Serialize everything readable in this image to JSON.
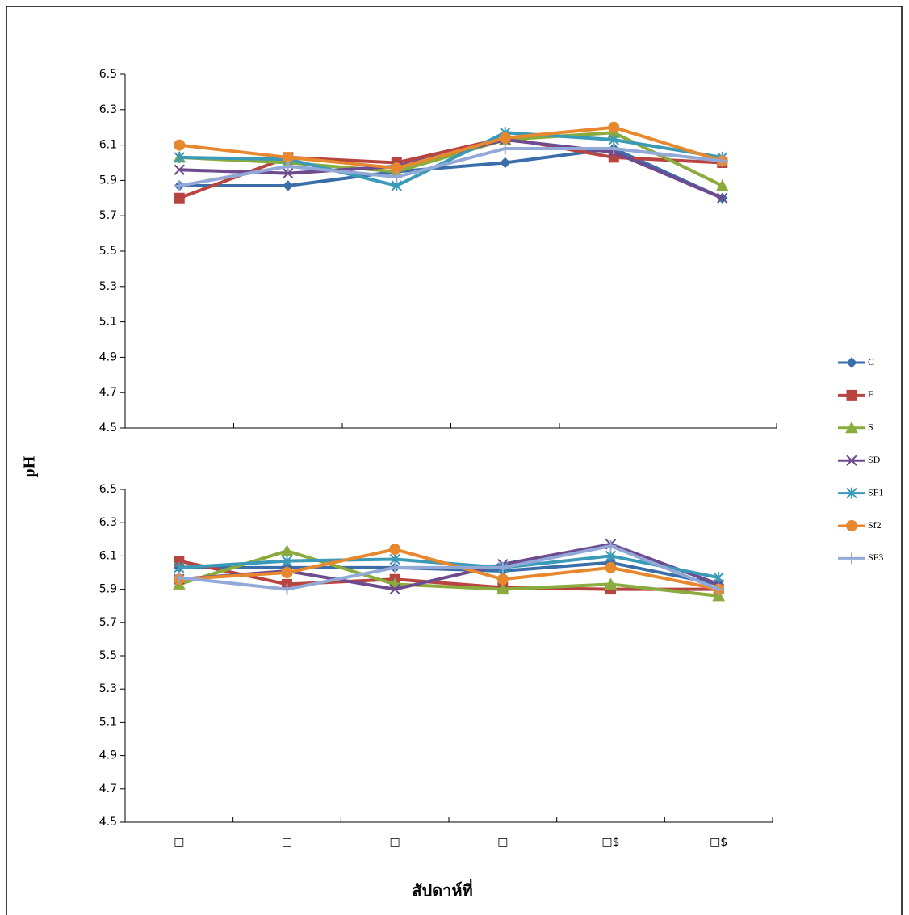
{
  "chart_data": [
    {
      "type": "line",
      "y_label": "pH",
      "ylim": [
        4.5,
        6.5
      ],
      "yticks": [
        4.5,
        4.7,
        4.9,
        5.1,
        5.3,
        5.5,
        5.7,
        5.9,
        6.1,
        6.3,
        6.5
      ],
      "series": [
        {
          "name": "C",
          "color": "#3a6ea8",
          "marker": "diamond",
          "values": [
            5.87,
            5.87,
            5.95,
            6.0,
            6.08,
            5.8
          ]
        },
        {
          "name": "F",
          "color": "#b84440",
          "marker": "square",
          "values": [
            5.8,
            6.03,
            6.0,
            6.14,
            6.03,
            6.0
          ]
        },
        {
          "name": "S",
          "color": "#8aab3e",
          "marker": "triangle",
          "values": [
            6.03,
            6.0,
            5.95,
            6.13,
            6.17,
            5.87
          ]
        },
        {
          "name": "SD",
          "color": "#6e4a8e",
          "marker": "x",
          "values": [
            5.96,
            5.94,
            5.98,
            6.13,
            6.06,
            5.8
          ]
        },
        {
          "name": "SF1",
          "color": "#3a9ab8",
          "marker": "star",
          "values": [
            6.03,
            6.02,
            5.87,
            6.17,
            6.13,
            6.03
          ]
        },
        {
          "name": "Sf2",
          "color": "#e8882e",
          "marker": "circle",
          "values": [
            6.1,
            6.03,
            5.97,
            6.14,
            6.2,
            6.01
          ]
        },
        {
          "name": "SF3",
          "color": "#92a9d8",
          "marker": "plus",
          "values": [
            5.87,
            5.98,
            5.92,
            6.08,
            6.08,
            6.01
          ]
        }
      ]
    },
    {
      "type": "line",
      "x_label": "สัปดาห์ที่",
      "categories": [
        "□",
        "□",
        "□",
        "□",
        "□$",
        "□$"
      ],
      "ylim": [
        4.5,
        6.5
      ],
      "yticks": [
        4.5,
        4.7,
        4.9,
        5.1,
        5.3,
        5.5,
        5.7,
        5.9,
        6.1,
        6.3,
        6.5
      ],
      "series": [
        {
          "color": "#3a6ea8",
          "marker": "diamond",
          "values": [
            6.03,
            6.03,
            6.03,
            6.01,
            6.06,
            5.93
          ]
        },
        {
          "color": "#b84440",
          "marker": "square",
          "values": [
            6.07,
            5.93,
            5.96,
            5.91,
            5.9,
            5.9
          ]
        },
        {
          "color": "#8aab3e",
          "marker": "triangle",
          "values": [
            5.93,
            6.13,
            5.93,
            5.9,
            5.93,
            5.86
          ]
        },
        {
          "color": "#6e4a8e",
          "marker": "x",
          "values": [
            5.96,
            6.01,
            5.9,
            6.05,
            6.17,
            5.93
          ]
        },
        {
          "color": "#3a9ab8",
          "marker": "star",
          "values": [
            6.03,
            6.07,
            6.08,
            6.03,
            6.1,
            5.97
          ]
        },
        {
          "color": "#e8882e",
          "marker": "circle",
          "values": [
            5.96,
            6.0,
            6.14,
            5.96,
            6.03,
            5.9
          ]
        },
        {
          "color": "#92a9d8",
          "marker": "plus",
          "values": [
            5.97,
            5.9,
            6.03,
            6.03,
            6.16,
            5.9
          ]
        }
      ]
    }
  ]
}
